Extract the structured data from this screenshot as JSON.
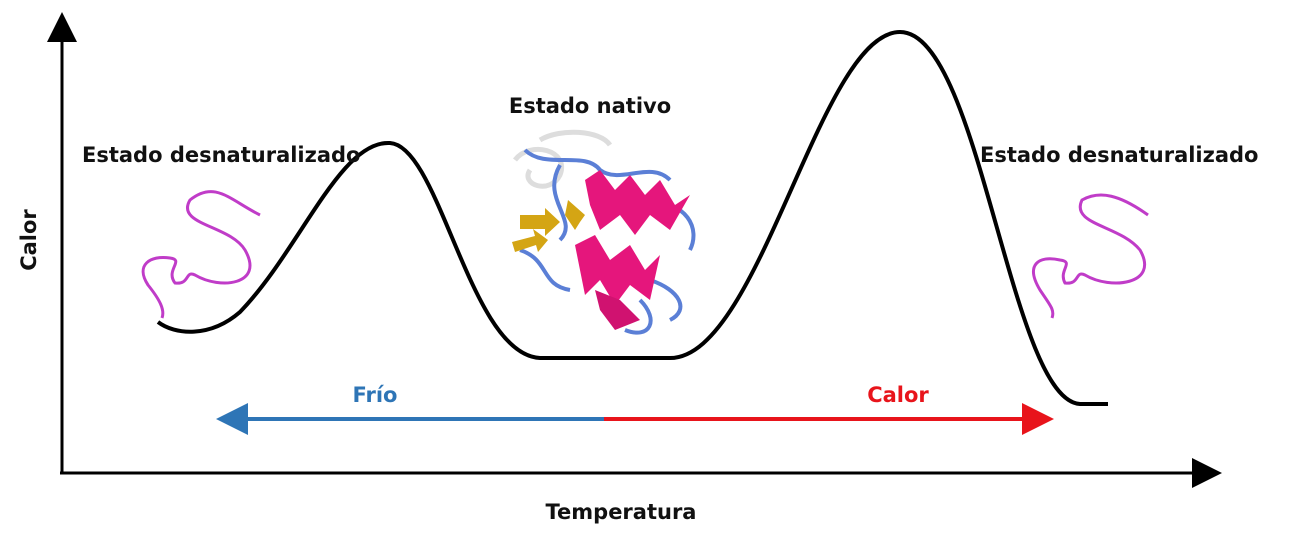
{
  "axes": {
    "y_label": "Calor",
    "x_label": "Temperatura"
  },
  "states": {
    "left": "Estado desnaturalizado",
    "native": "Estado nativo",
    "right": "Estado desnaturalizado"
  },
  "arrow": {
    "cold": "Frío",
    "heat": "Calor"
  }
}
